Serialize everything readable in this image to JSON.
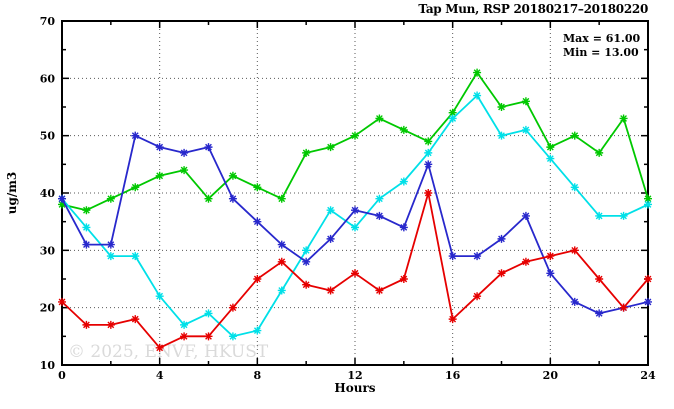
{
  "title": "Tap Mun, RSP 20180217–20180220",
  "annotation": {
    "max_label": "Max = 61.00",
    "min_label": "Min = 13.00"
  },
  "watermark": "© 2025, ENVF, HKUST",
  "colors": {
    "green": "#00c800",
    "cyan": "#00e0e8",
    "blue": "#2828cc",
    "red": "#e60000",
    "grid": "#5a5a5a",
    "text": "#000000",
    "watermark": "#dadada"
  },
  "chart_data": {
    "type": "line",
    "title": "Tap Mun, RSP 20180217–20180220",
    "xlabel": "Hours",
    "ylabel": "ug/m3",
    "xlim": [
      0,
      24
    ],
    "ylim": [
      10,
      70
    ],
    "x_major_ticks": [
      0,
      4,
      8,
      12,
      16,
      20,
      24
    ],
    "x_minor_ticks": [
      2,
      6,
      10,
      14,
      18,
      22
    ],
    "y_major_ticks": [
      10,
      20,
      30,
      40,
      50,
      60,
      70
    ],
    "y_minor_ticks": [
      15,
      25,
      35,
      45,
      55,
      65
    ],
    "grid": "dotted at major ticks, all four sides mirrored ticks",
    "legend_position": "none",
    "x": [
      0,
      1,
      2,
      3,
      4,
      5,
      6,
      7,
      8,
      9,
      10,
      11,
      12,
      13,
      14,
      15,
      16,
      17,
      18,
      19,
      20,
      21,
      22,
      23,
      24
    ],
    "series": [
      {
        "name": "green",
        "color": "#00c800",
        "values": [
          38,
          37,
          39,
          41,
          43,
          44,
          39,
          43,
          41,
          39,
          47,
          48,
          50,
          53,
          51,
          49,
          54,
          61,
          55,
          56,
          48,
          50,
          47,
          53,
          39
        ]
      },
      {
        "name": "cyan",
        "color": "#00e0e8",
        "values": [
          39,
          34,
          29,
          29,
          22,
          17,
          19,
          15,
          16,
          23,
          30,
          37,
          34,
          39,
          42,
          47,
          53,
          57,
          50,
          51,
          46,
          41,
          36,
          36,
          38
        ]
      },
      {
        "name": "blue",
        "color": "#2828cc",
        "values": [
          39,
          31,
          31,
          50,
          48,
          47,
          48,
          39,
          35,
          31,
          28,
          32,
          37,
          36,
          34,
          45,
          29,
          29,
          32,
          36,
          26,
          21,
          19,
          20,
          21
        ]
      },
      {
        "name": "red",
        "color": "#e60000",
        "values": [
          21,
          17,
          17,
          18,
          13,
          15,
          15,
          20,
          25,
          28,
          24,
          23,
          26,
          23,
          25,
          40,
          18,
          22,
          26,
          28,
          29,
          30,
          25,
          20,
          25
        ]
      }
    ],
    "stats": {
      "max": 61.0,
      "min": 13.0
    }
  }
}
